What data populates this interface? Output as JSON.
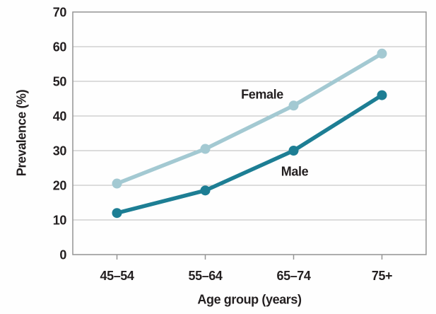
{
  "page": {
    "background": "#fefefe"
  },
  "chart_data": {
    "type": "line",
    "title": "",
    "xlabel": "Age group (years)",
    "ylabel": "Prevalence (%)",
    "categories": [
      "45–54",
      "55–64",
      "65–74",
      "75+"
    ],
    "series": [
      {
        "name": "Female",
        "values": [
          20.5,
          30.5,
          43,
          58
        ],
        "color": "#a3c9d2",
        "marker": "circle"
      },
      {
        "name": "Male",
        "values": [
          12,
          18.5,
          30,
          46
        ],
        "color": "#1d7e94",
        "marker": "circle"
      }
    ],
    "ylim": [
      0,
      70
    ],
    "yticks": [
      0,
      10,
      20,
      30,
      40,
      50,
      60,
      70
    ],
    "grid": "horizontal",
    "legend": "inline-labels",
    "axis_text_color": "#231f20",
    "grid_color": "#b9b9b9",
    "border_color": "#949494"
  }
}
